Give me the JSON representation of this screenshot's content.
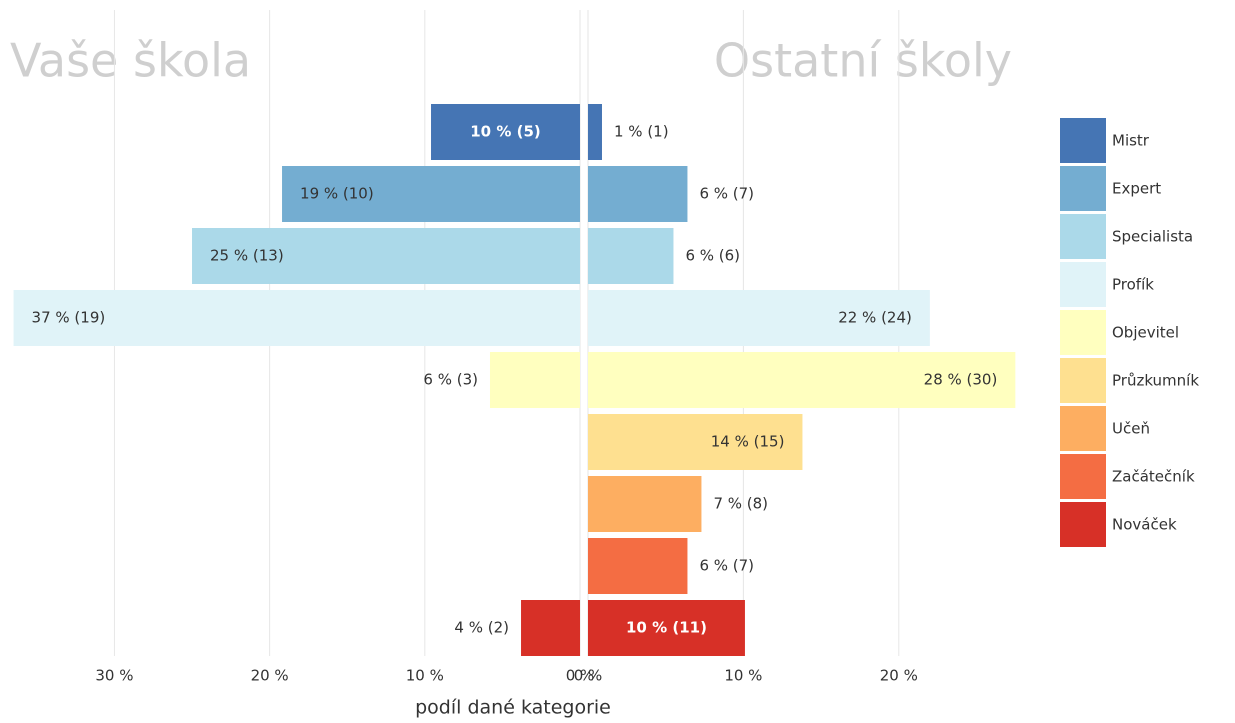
{
  "chart_data": {
    "type": "butterfly",
    "xlabel": "podíl dané kategorie",
    "categories": [
      "Mistr",
      "Expert",
      "Specialista",
      "Profík",
      "Objevitel",
      "Průzkumník",
      "Učeň",
      "Začátečník",
      "Nováček"
    ],
    "colors": [
      "#4575b4",
      "#74add1",
      "#abd9e9",
      "#e0f3f8",
      "#ffffbf",
      "#fee090",
      "#fdae61",
      "#f46d43",
      "#d73027"
    ],
    "legend": "right",
    "grid": true,
    "series": [
      {
        "name": "Vaše škola",
        "side": "left",
        "values": [
          9.6,
          19.2,
          25,
          36.5,
          5.8,
          null,
          null,
          null,
          3.8
        ],
        "value_labels": [
          "10 % (5)",
          "19 % (10)",
          "25 % (13)",
          "37 % (19)",
          "6 % (3)",
          null,
          null,
          null,
          "4 % (2)"
        ],
        "xlim": [
          0,
          36.6
        ],
        "xticks": [
          {
            "value": 30,
            "label": "30 %"
          },
          {
            "value": 20,
            "label": "20 %"
          },
          {
            "value": 10,
            "label": "10 %"
          },
          {
            "value": 0,
            "label": "0 %"
          }
        ]
      },
      {
        "name": "Ostatní školy",
        "side": "right",
        "values": [
          0.9,
          6.4,
          5.5,
          22,
          27.5,
          13.8,
          7.3,
          6.4,
          10.1
        ],
        "value_labels": [
          "1 % (1)",
          "6 % (7)",
          "6 % (6)",
          "22 % (24)",
          "28 % (30)",
          "14 % (15)",
          "7 % (8)",
          "6 % (7)",
          "10 % (11)"
        ],
        "xlim": [
          0,
          27.8
        ],
        "xticks": [
          {
            "value": 0,
            "label": "0 %"
          },
          {
            "value": 10,
            "label": "10 %"
          },
          {
            "value": 20,
            "label": "20 %"
          }
        ]
      }
    ]
  }
}
